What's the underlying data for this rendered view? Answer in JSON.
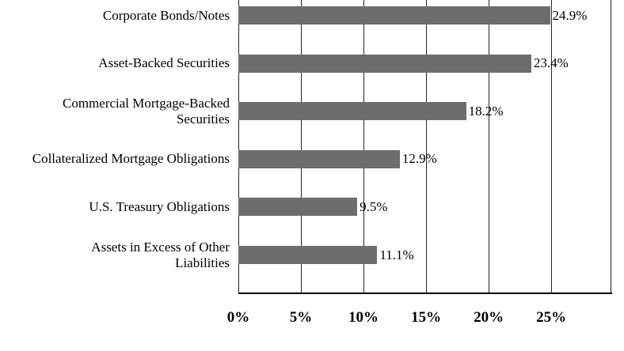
{
  "chart_data": {
    "type": "bar",
    "orientation": "horizontal",
    "title": "",
    "xlabel": "",
    "ylabel": "",
    "grid": true,
    "legend": false,
    "categories": [
      "Corporate Bonds/Notes",
      "Asset-Backed Securities",
      "Commercial Mortgage-Backed\nSecurities",
      "Collateralized Mortgage Obligations",
      "U.S. Treasury Obligations",
      "Assets in Excess of Other\nLiabilities"
    ],
    "values": [
      24.9,
      23.4,
      18.2,
      12.9,
      9.5,
      11.1
    ],
    "value_labels": [
      "24.9%",
      "23.4%",
      "18.2%",
      "12.9%",
      "9.5%",
      "11.1%"
    ],
    "x_ticks": [
      0,
      5,
      10,
      15,
      20,
      25
    ],
    "x_tick_labels": [
      "0%",
      "5%",
      "10%",
      "15%",
      "20%",
      "25%"
    ],
    "x_axis_range": [
      0,
      29.8
    ],
    "bar_color": "#6d6d6d",
    "gridline_color": "#262626",
    "axis_color": "#000000",
    "background_color": "#ffffff"
  }
}
